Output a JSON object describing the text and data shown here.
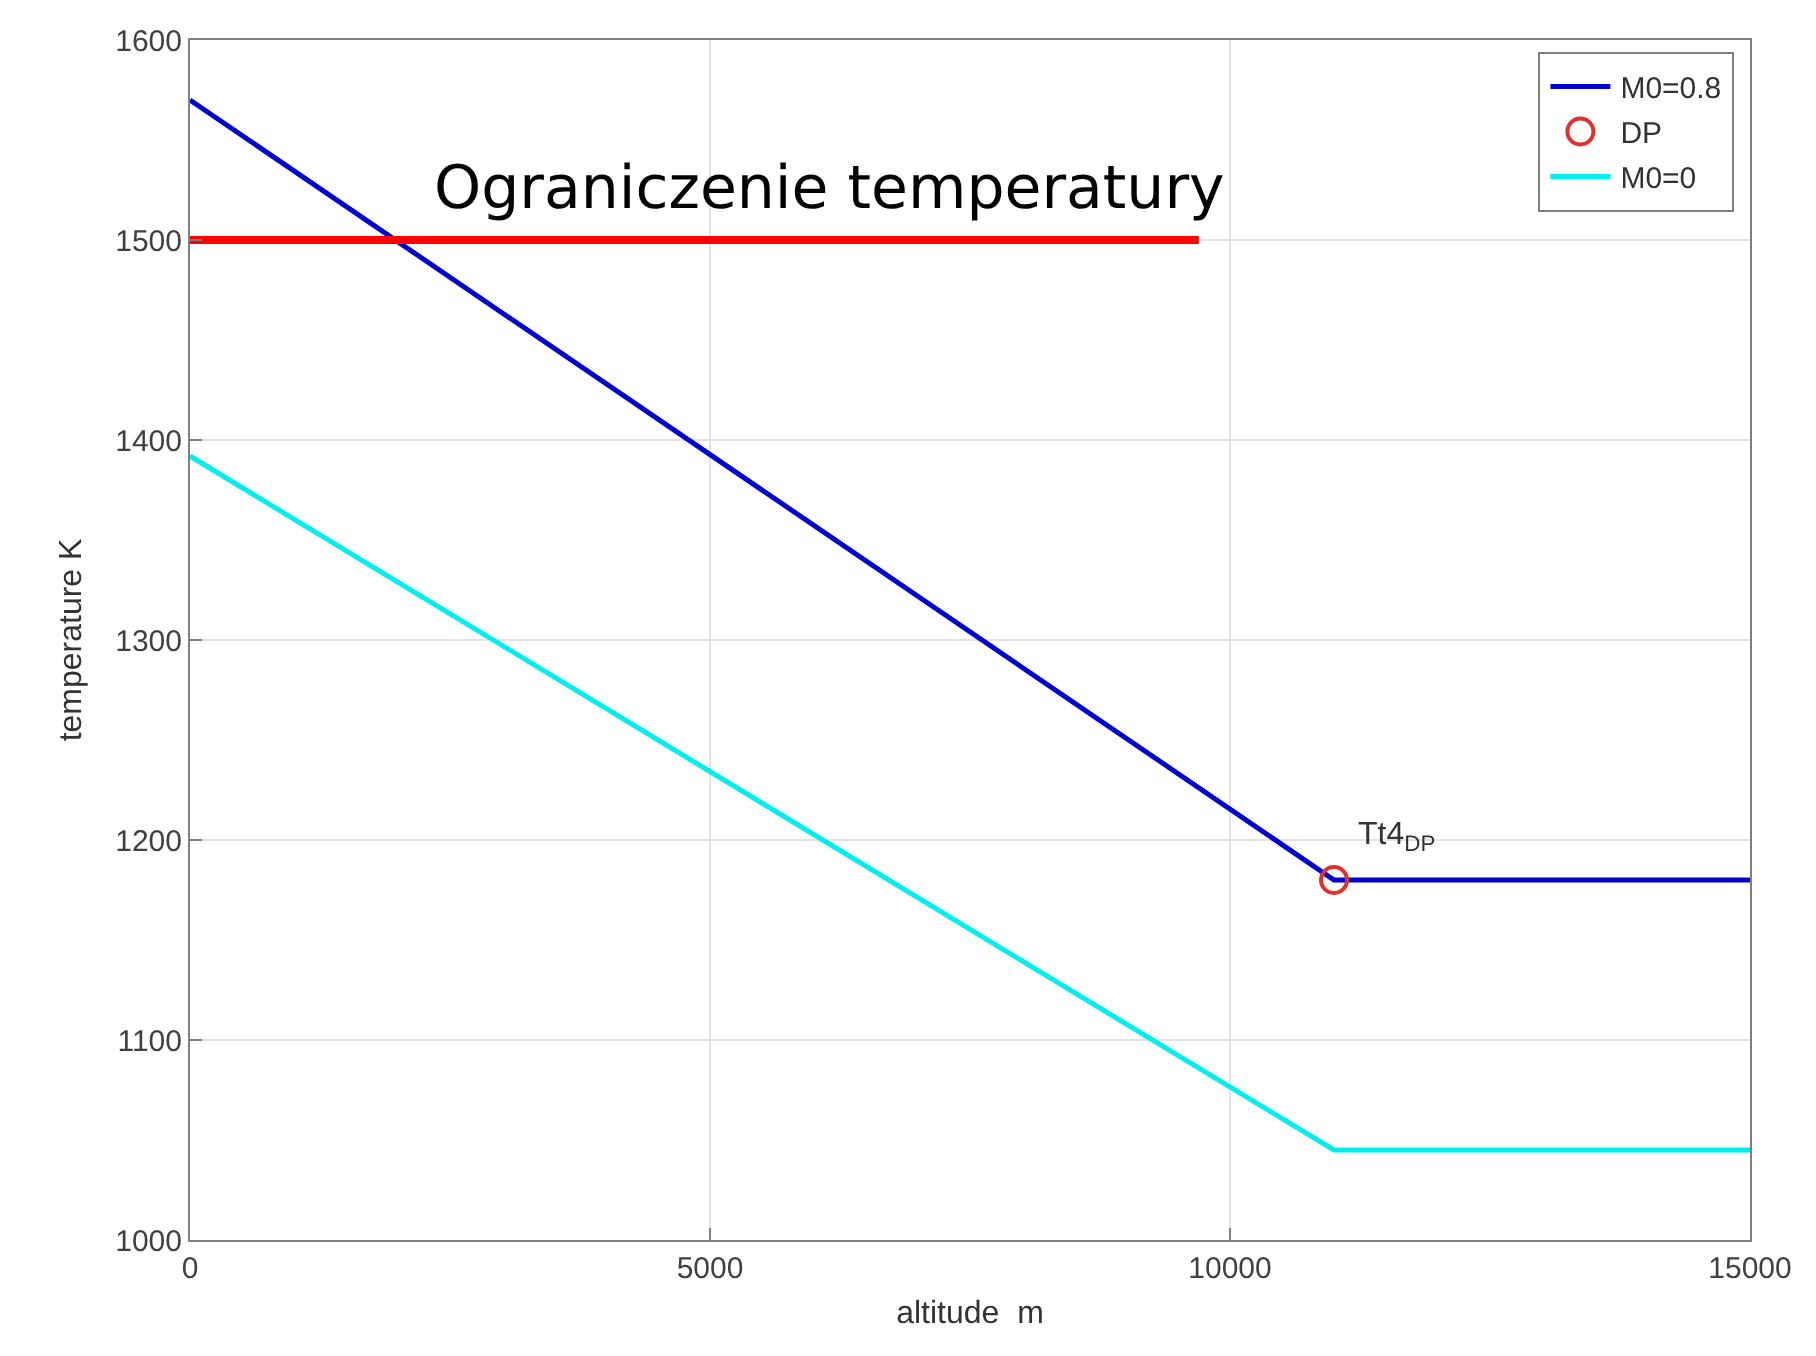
{
  "chart_data": {
    "type": "line",
    "xlabel": "altitude  m",
    "ylabel": "temperature K",
    "xlim": [
      0,
      15000
    ],
    "xticks": [
      0,
      5000,
      10000,
      15000
    ],
    "ylim": [
      1000,
      1600
    ],
    "yticks": [
      1000,
      1100,
      1200,
      1300,
      1400,
      1500,
      1600
    ],
    "grid": true,
    "legend": "top right",
    "series": [
      {
        "name": "M0=0.8",
        "color": "#0000cc",
        "x": [
          0,
          11000,
          15000
        ],
        "values": [
          1570,
          1180,
          1180
        ]
      },
      {
        "name": "DP",
        "type": "scatter",
        "marker": "circle",
        "color": "#e03030",
        "x": [
          11000
        ],
        "values": [
          1180
        ]
      },
      {
        "name": "M0=0",
        "color": "#00eeee",
        "x": [
          0,
          11000,
          15000
        ],
        "values": [
          1392,
          1045,
          1045
        ]
      },
      {
        "color": "#ff0000",
        "x": [
          0,
          9700
        ],
        "values": [
          1500,
          1500
        ]
      }
    ],
    "annotations": [
      {
        "text": "Ograniczenie temperatury",
        "x": 6150,
        "y": 1500
      },
      {
        "text": "Tt4$_{DP}$",
        "x": 11000,
        "y": 1180
      }
    ]
  }
}
